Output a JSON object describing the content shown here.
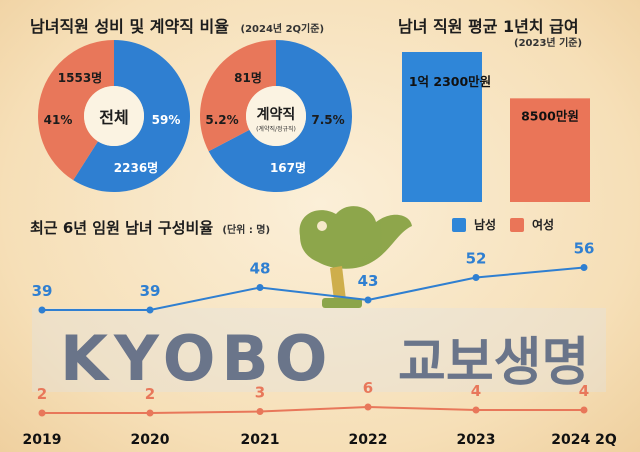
{
  "colors": {
    "male": "#2f7fd1",
    "female": "#e8775a",
    "text": "#1c1c1c",
    "bar_male": "#2f86d8",
    "bar_female": "#ea7558",
    "logo": "#4a5a7a",
    "bird": "#6e8f2c"
  },
  "header": {
    "title": "남녀직원 성비 및 계약직 비율",
    "subtitle": "(2024년 2Q기준)"
  },
  "salary": {
    "title": "남녀 직원 평균 1년치 급여",
    "subtitle": "(2023년 기준)"
  },
  "trend": {
    "title": "최근 6년 임원 남녀 구성비율",
    "unit": "(단위 : 명)"
  },
  "legend": {
    "male": "남성",
    "female": "여성"
  },
  "logo": {
    "text_en": "KYOBO",
    "text_kr": "교보생명"
  },
  "chart_data": [
    {
      "type": "pie",
      "center_label": "전체",
      "slices": [
        {
          "label": "남성",
          "pct_label": "59%",
          "count_label": "2236명",
          "value": 2236
        },
        {
          "label": "여성",
          "pct_label": "41%",
          "count_label": "1553명",
          "value": 1553
        }
      ]
    },
    {
      "type": "pie",
      "center_label": "계약직",
      "center_sub": "(계약직/정규직)",
      "slices": [
        {
          "label": "남성",
          "pct_label": "7.5%",
          "count_label": "167명",
          "value": 167
        },
        {
          "label": "여성",
          "pct_label": "5.2%",
          "count_label": "81명",
          "value": 81
        }
      ]
    },
    {
      "type": "bar",
      "categories": [
        "남성",
        "여성"
      ],
      "values": [
        12300,
        8500
      ],
      "value_labels": [
        "1억 2300만원",
        "8500만원"
      ],
      "ylim": [
        0,
        12300
      ]
    },
    {
      "type": "line",
      "x": [
        "2019",
        "2020",
        "2021",
        "2022",
        "2023",
        "2024 2Q"
      ],
      "series": [
        {
          "name": "남성",
          "values": [
            39,
            39,
            48,
            43,
            52,
            56
          ]
        },
        {
          "name": "여성",
          "values": [
            2,
            2,
            3,
            6,
            4,
            4
          ]
        }
      ],
      "ylim": [
        0,
        60
      ]
    }
  ]
}
